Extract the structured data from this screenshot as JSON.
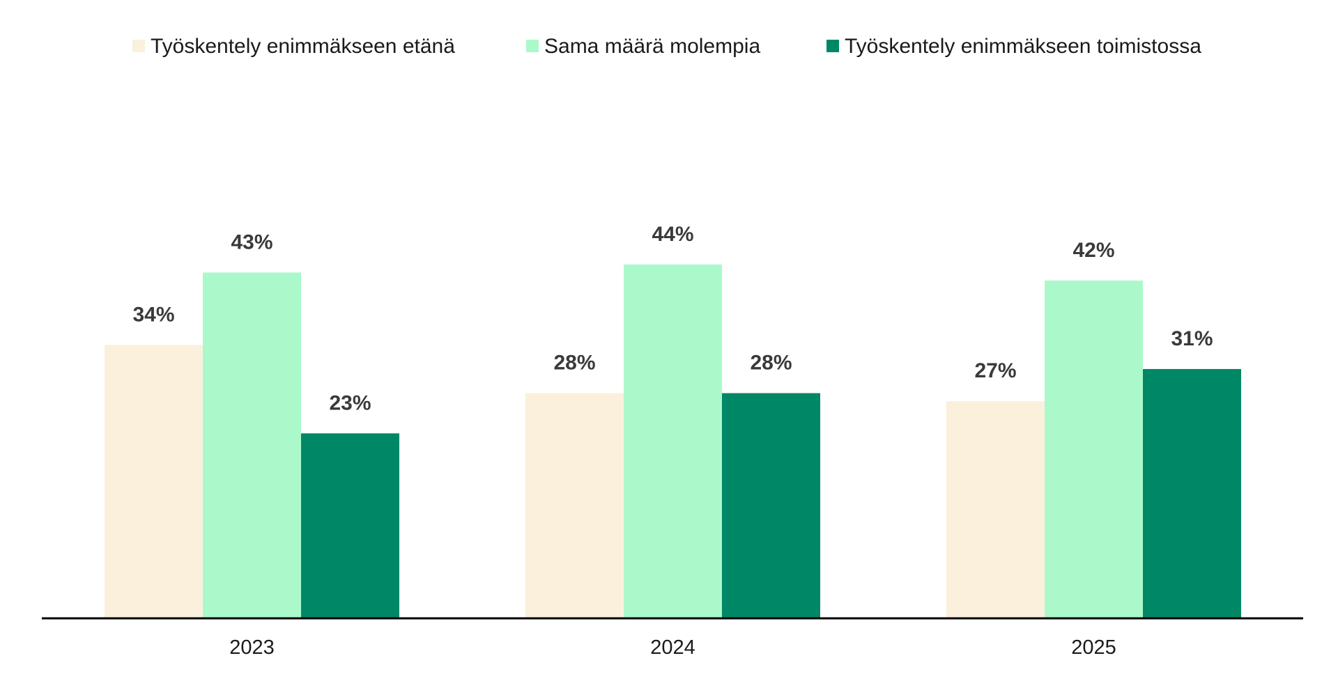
{
  "chart_data": {
    "type": "bar",
    "title": "",
    "xlabel": "",
    "ylabel": "",
    "categories": [
      "2023",
      "2024",
      "2025"
    ],
    "series": [
      {
        "name": "Työskentely enimmäkseen etänä",
        "values": [
          34,
          28,
          27
        ],
        "labels": [
          "34%",
          "28%",
          "27%"
        ],
        "color": "#FAF0DC"
      },
      {
        "name": "Sama määrä molempia",
        "values": [
          43,
          44,
          42
        ],
        "labels": [
          "43%",
          "44%",
          "42%"
        ],
        "color": "#ABF9CB"
      },
      {
        "name": "Työskentely enimmäkseen toimistossa",
        "values": [
          23,
          28,
          31
        ],
        "labels": [
          "23%",
          "28%",
          "31%"
        ],
        "color": "#008866"
      }
    ],
    "ylim": [
      0,
      50
    ],
    "unit": "%",
    "grid": false,
    "legend_position": "top",
    "axis_color": "#000000"
  }
}
